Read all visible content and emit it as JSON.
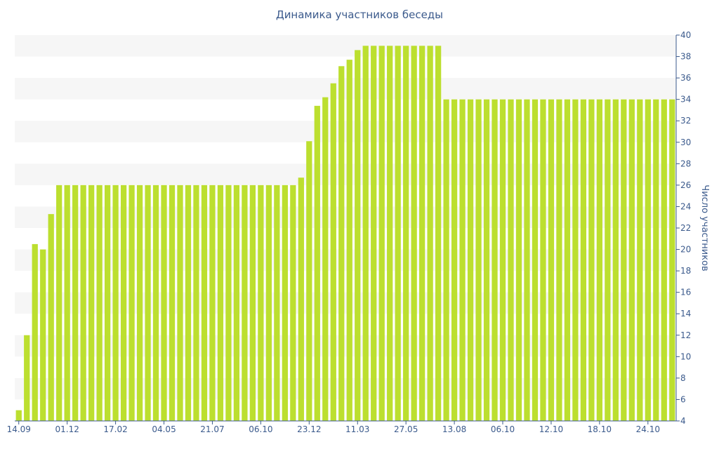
{
  "chart_data": {
    "type": "bar",
    "title": "Динамика участников беседы",
    "ylabel": "Число участников",
    "xlabel": "",
    "ylim": [
      4,
      40
    ],
    "y_ticks": [
      4,
      6,
      8,
      10,
      12,
      14,
      16,
      18,
      20,
      22,
      24,
      26,
      28,
      30,
      32,
      34,
      36,
      38,
      40
    ],
    "x_tick_labels": [
      {
        "index": 0,
        "label": "14.09"
      },
      {
        "index": 6,
        "label": "01.12"
      },
      {
        "index": 12,
        "label": "17.02"
      },
      {
        "index": 18,
        "label": "04.05"
      },
      {
        "index": 24,
        "label": "21.07"
      },
      {
        "index": 30,
        "label": "06.10"
      },
      {
        "index": 36,
        "label": "23.12"
      },
      {
        "index": 42,
        "label": "11.03"
      },
      {
        "index": 48,
        "label": "27.05"
      },
      {
        "index": 54,
        "label": "13.08"
      },
      {
        "index": 60,
        "label": "06.10"
      },
      {
        "index": 66,
        "label": "12.10"
      },
      {
        "index": 72,
        "label": "18.10"
      },
      {
        "index": 78,
        "label": "24.10"
      }
    ],
    "values": [
      5,
      12,
      20.5,
      20,
      23.3,
      26,
      26,
      26,
      26,
      26,
      26,
      26,
      26,
      26,
      26,
      26,
      26,
      26,
      26,
      26,
      26,
      26,
      26,
      26,
      26,
      26,
      26,
      26,
      26,
      26,
      26,
      26,
      26,
      26,
      26,
      26.7,
      30.1,
      33.4,
      34.2,
      35.5,
      37.1,
      37.7,
      38.6,
      39,
      39,
      39,
      39,
      39,
      39,
      39,
      39,
      39,
      39,
      34,
      34,
      34,
      34,
      34,
      34,
      34,
      34,
      34,
      34,
      34,
      34,
      34,
      34,
      34,
      34,
      34,
      34,
      34,
      34,
      34,
      34,
      34,
      34,
      34,
      34,
      34,
      34,
      34
    ],
    "grid": "alternating horizontal bands",
    "y_axis_side": "right",
    "colors": {
      "bar": "#bcdf2f",
      "band": "#f6f6f6",
      "text": "#3b5a8c",
      "axis": "#3b5a8c"
    }
  }
}
